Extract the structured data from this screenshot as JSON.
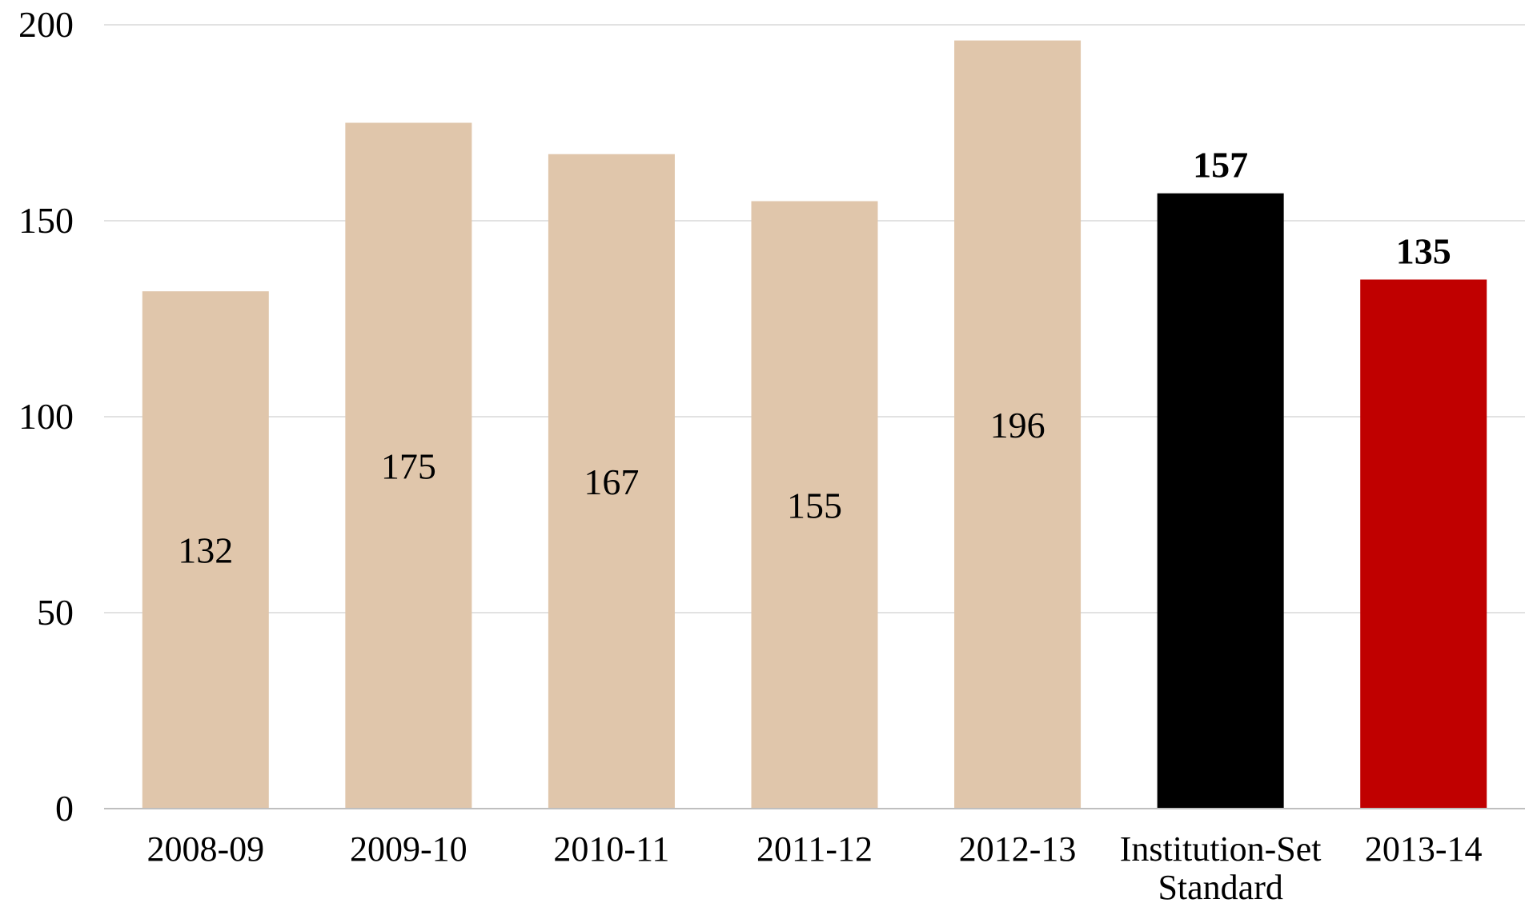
{
  "chart_data": {
    "type": "bar",
    "title": "",
    "xlabel": "",
    "ylabel": "",
    "ylim": [
      0,
      200
    ],
    "yticks": [
      0,
      50,
      100,
      150,
      200
    ],
    "grid": true,
    "categories": [
      "2008-09",
      "2009-10",
      "2010-11",
      "2011-12",
      "2012-13",
      "Institution-Set Standard",
      "2013-14"
    ],
    "category_lines": [
      [
        "2008-09"
      ],
      [
        "2009-10"
      ],
      [
        "2010-11"
      ],
      [
        "2011-12"
      ],
      [
        "2012-13"
      ],
      [
        "Institution-Set",
        "Standard"
      ],
      [
        "2013-14"
      ]
    ],
    "values": [
      132,
      175,
      167,
      155,
      196,
      157,
      135
    ],
    "bar_colors": [
      "#e0c6ab",
      "#e0c6ab",
      "#e0c6ab",
      "#e0c6ab",
      "#e0c6ab",
      "#000000",
      "#c00000"
    ],
    "label_position": [
      "inside",
      "inside",
      "inside",
      "inside",
      "inside",
      "above",
      "above"
    ],
    "label_bold": [
      false,
      false,
      false,
      false,
      false,
      true,
      true
    ]
  }
}
